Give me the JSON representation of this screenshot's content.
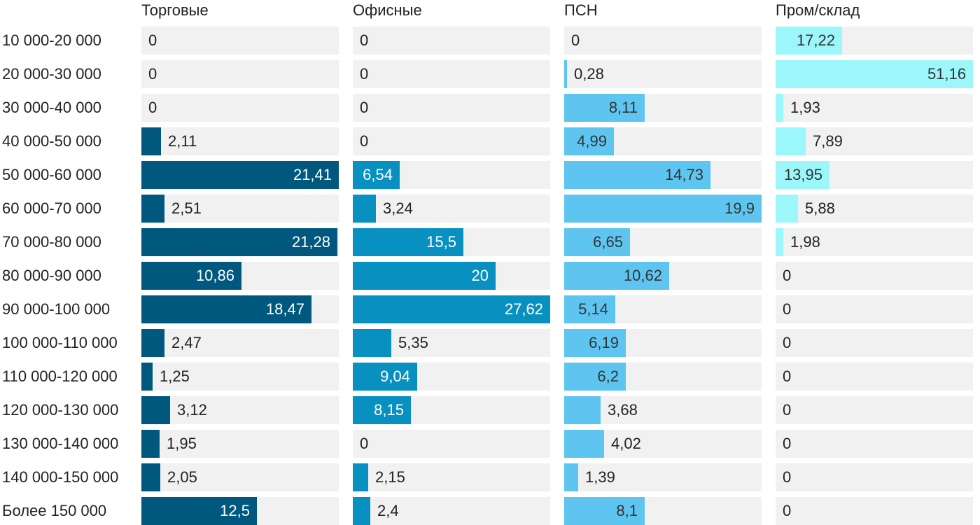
{
  "chart_data": {
    "type": "bar",
    "orientation": "horizontal",
    "layout": "small-multiples",
    "categories": [
      "10 000-20 000",
      "20 000-30 000",
      "30 000-40 000",
      "40 000-50 000",
      "50 000-60 000",
      "60 000-70 000",
      "70 000-80 000",
      "80 000-90 000",
      "90 000-100 000",
      "100 000-110 000",
      "110 000-120 000",
      "120 000-130 000",
      "130 000-140 000",
      "140 000-150 000",
      "Более 150 000"
    ],
    "series": [
      {
        "name": "Торговые",
        "color": "#00587f",
        "max": 21.41,
        "labels": [
          "0",
          "0",
          "0",
          "2,11",
          "21,41",
          "2,51",
          "21,28",
          "10,86",
          "18,47",
          "2,47",
          "1,25",
          "3,12",
          "1,95",
          "2,05",
          "12,5"
        ],
        "values": [
          0,
          0,
          0,
          2.11,
          21.41,
          2.51,
          21.28,
          10.86,
          18.47,
          2.47,
          1.25,
          3.12,
          1.95,
          2.05,
          12.5
        ]
      },
      {
        "name": "Офисные",
        "color": "#0891c0",
        "max": 27.62,
        "labels": [
          "0",
          "0",
          "0",
          "0",
          "6,54",
          "3,24",
          "15,5",
          "20",
          "27,62",
          "5,35",
          "9,04",
          "8,15",
          "0",
          "2,15",
          "2,4"
        ],
        "values": [
          0,
          0,
          0,
          0,
          6.54,
          3.24,
          15.5,
          20,
          27.62,
          5.35,
          9.04,
          8.15,
          0,
          2.15,
          2.4
        ]
      },
      {
        "name": "ПСН",
        "color": "#5ec5f0",
        "max": 19.9,
        "labels": [
          "0",
          "0,28",
          "8,11",
          "4,99",
          "14,73",
          "19,9",
          "6,65",
          "10,62",
          "5,14",
          "6,19",
          "6,2",
          "3,68",
          "4,02",
          "1,39",
          "8,1"
        ],
        "values": [
          0,
          0.28,
          8.11,
          4.99,
          14.73,
          19.9,
          6.65,
          10.62,
          5.14,
          6.19,
          6.2,
          3.68,
          4.02,
          1.39,
          8.1
        ]
      },
      {
        "name": "Пром/склад",
        "color": "#9cf7fb",
        "max": 51.16,
        "labels": [
          "17,22",
          "51,16",
          "1,93",
          "7,89",
          "13,95",
          "5,88",
          "1,98",
          "0",
          "0",
          "0",
          "0",
          "0",
          "0",
          "0",
          "0"
        ],
        "values": [
          17.22,
          51.16,
          1.93,
          7.89,
          13.95,
          5.88,
          1.98,
          0,
          0,
          0,
          0,
          0,
          0,
          0,
          0
        ]
      }
    ]
  }
}
